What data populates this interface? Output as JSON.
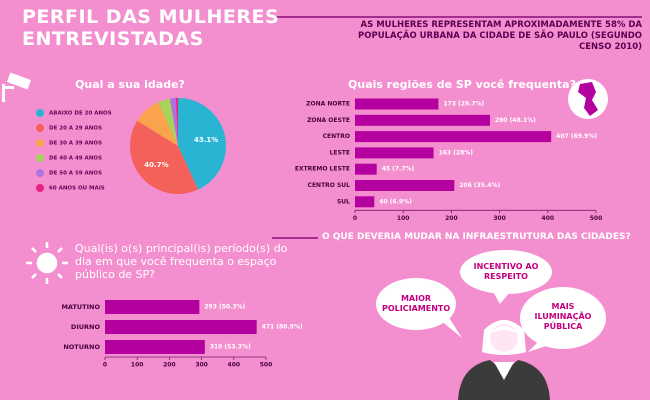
{
  "header": {
    "title_lines": [
      "PERFIL DAS MULHERES",
      "ENTREVISTADAS"
    ],
    "note": "AS MULHERES REPRESENTAM APROXIMADAMENTE 58% DA POPULAÇÃO URBANA DA CIDADE DE SÃO PAULO (SEGUNDO CENSO 2010)"
  },
  "chart_data": [
    {
      "type": "pie",
      "title": "Qual a sua idade?",
      "categories": [
        "ABAIXO DE 20 ANOS",
        "DE 20 A 29 ANOS",
        "DE 30 A 39 ANOS",
        "DE 40 A 49 ANOS",
        "DE 50 A 59 ANOS",
        "60 ANOS OU MAIS"
      ],
      "values": [
        43.1,
        40.7,
        9.5,
        4,
        2,
        0.7
      ],
      "value_labels": [
        "43.1%",
        "40.7%",
        null,
        null,
        null,
        null
      ],
      "colors": [
        "#2ab4d3",
        "#f4615b",
        "#f9a34c",
        "#a6d45b",
        "#b170e0",
        "#e8237e"
      ]
    },
    {
      "type": "bar",
      "orientation": "horizontal",
      "title": "Quais regiões de SP você frequenta?",
      "categories": [
        "ZONA NORTE",
        "ZONA OESTE",
        "CENTRO",
        "LESTE",
        "EXTREMO LESTE",
        "CENTRO SUL",
        "SUL"
      ],
      "values": [
        173,
        280,
        407,
        163,
        45,
        206,
        40
      ],
      "value_labels": [
        "173 (29.7%)",
        "280 (48.1%)",
        "407 (69.9%)",
        "163 (28%)",
        "45 (7.7%)",
        "206 (35.4%)",
        "40 (6.9%)"
      ],
      "color": "#b4009e",
      "xlim": [
        0,
        500
      ],
      "xticks": [
        0,
        100,
        200,
        300,
        400,
        500
      ]
    },
    {
      "type": "bar",
      "orientation": "horizontal",
      "title": "Qual(is) o(s) principal(is) período(s) do dia em que você frequenta o espaço público de SP?",
      "categories": [
        "MATUTINO",
        "DIURNO",
        "NOTURNO"
      ],
      "values": [
        293,
        471,
        310
      ],
      "value_labels": [
        "293 (50.3%)",
        "471 (80.9%)",
        "310 (53.3%)"
      ],
      "color": "#b4009e",
      "xlim": [
        0,
        500
      ],
      "xticks": [
        0,
        100,
        200,
        300,
        400,
        500
      ]
    }
  ],
  "infrastructure": {
    "title": "O QUE DEVERIA MUDAR NA INFRAESTRUTURA DAS CIDADES?",
    "bubbles": [
      "INCENTIVO AO RESPEITO",
      "MAIOR POLICIAMENTO",
      "MAIS ILUMINAÇÃO PÚBLICA"
    ]
  }
}
